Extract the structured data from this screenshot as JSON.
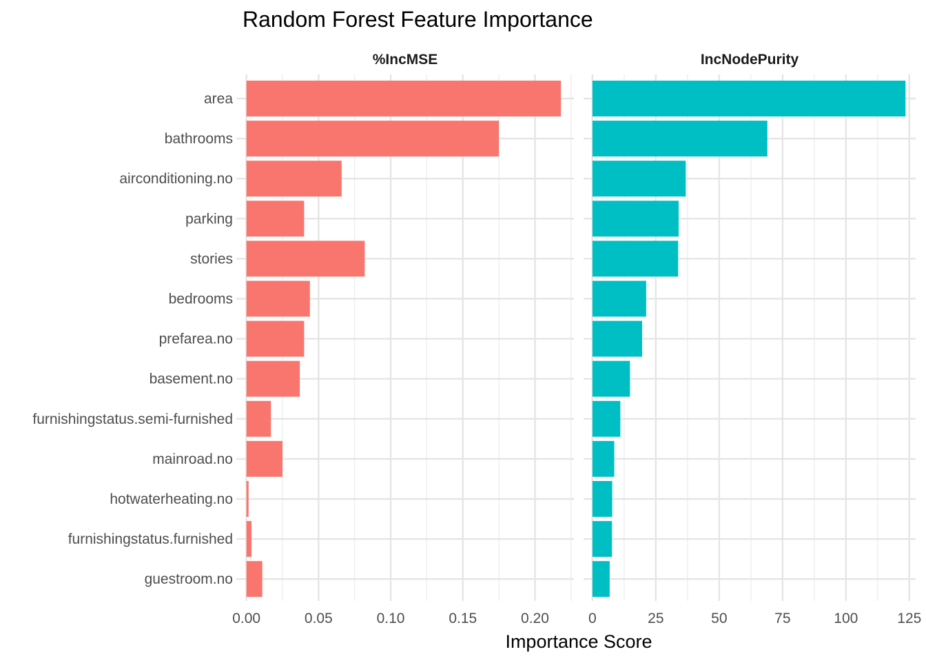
{
  "chart_data": {
    "type": "bar",
    "orientation": "horizontal",
    "title": "Random Forest Feature Importance",
    "xlabel": "Importance Score",
    "ylabel": "",
    "grid": true,
    "legend": "none",
    "categories": [
      "area",
      "bathrooms",
      "airconditioning.no",
      "parking",
      "stories",
      "bedrooms",
      "prefarea.no",
      "basement.no",
      "furnishingstatus.semi-furnished",
      "mainroad.no",
      "hotwaterheating.no",
      "furnishingstatus.furnished",
      "guestroom.no"
    ],
    "panels": [
      {
        "title": "%IncMSE",
        "color": "#F8766D",
        "xlim": [
          -0.007,
          0.227
        ],
        "ticks": [
          0.0,
          0.05,
          0.1,
          0.15,
          0.2
        ],
        "tick_labels": [
          "0.00",
          "0.05",
          "0.10",
          "0.15",
          "0.20"
        ],
        "minor_ticks": [
          0.025,
          0.075,
          0.125,
          0.175,
          0.225
        ],
        "values": [
          0.218,
          0.175,
          0.066,
          0.04,
          0.082,
          0.044,
          0.04,
          0.037,
          0.017,
          0.025,
          0.0015,
          0.0035,
          0.011
        ]
      },
      {
        "title": "IncNodePurity",
        "color": "#00BFC4",
        "xlim": [
          -3.5,
          127.5
        ],
        "ticks": [
          0,
          25,
          50,
          75,
          100,
          125
        ],
        "tick_labels": [
          "0",
          "25",
          "50",
          "75",
          "100",
          "125"
        ],
        "minor_ticks": [
          12.5,
          37.5,
          62.5,
          87.5,
          112.5
        ],
        "values": [
          123.5,
          69.0,
          36.8,
          34.0,
          33.8,
          21.2,
          19.6,
          14.8,
          11.0,
          8.6,
          7.8,
          7.7,
          6.8
        ]
      }
    ]
  }
}
